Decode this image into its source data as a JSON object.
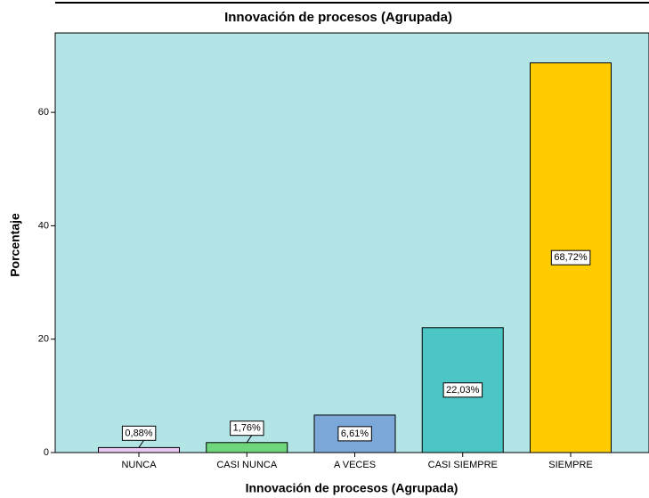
{
  "chart_data": {
    "type": "bar",
    "title": "Innovación de procesos  (Agrupada)",
    "x_label": "Innovación de procesos  (Agrupada)",
    "y_label": "Porcentaje",
    "categories": [
      "NUNCA",
      "CASI NUNCA",
      "A VECES",
      "CASI SIEMPRE",
      "SIEMPRE"
    ],
    "values": [
      0.88,
      1.76,
      6.61,
      22.03,
      68.72
    ],
    "value_labels": [
      "0,88%",
      "1,76%",
      "6,61%",
      "22,03%",
      "68,72%"
    ],
    "colors": [
      "#e8c6f2",
      "#6fd67c",
      "#7ba7d9",
      "#4cc5c5",
      "#ffcc00"
    ],
    "background": "#b3e5e6",
    "ylim": [
      0,
      74
    ],
    "yticks": [
      0,
      20,
      40,
      60
    ]
  }
}
